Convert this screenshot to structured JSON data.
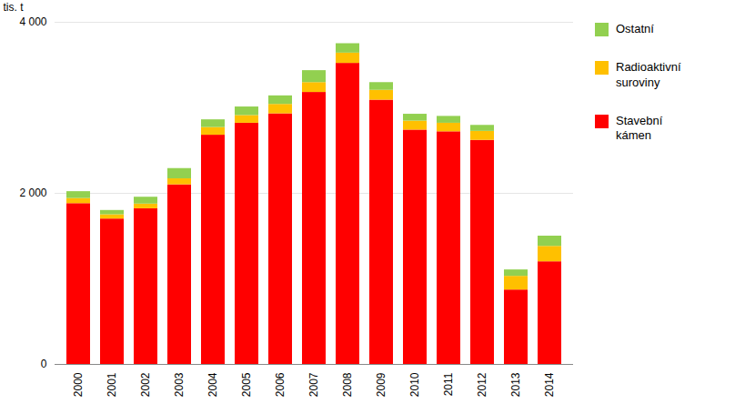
{
  "chart_data": {
    "type": "bar",
    "stacked": true,
    "categories": [
      "2000",
      "2001",
      "2002",
      "2003",
      "2004",
      "2005",
      "2006",
      "2007",
      "2008",
      "2009",
      "2010",
      "2011",
      "2012",
      "2013",
      "2014"
    ],
    "series": [
      {
        "name": "Stavební\nkámen",
        "color": "#FF0000",
        "values": [
          1880,
          1700,
          1820,
          2100,
          2680,
          2820,
          2930,
          3180,
          3520,
          3090,
          2740,
          2720,
          2620,
          870,
          1200
        ]
      },
      {
        "name": "Radioaktivní\nsuroviny",
        "color": "#FFC000",
        "values": [
          60,
          50,
          55,
          70,
          90,
          90,
          110,
          115,
          120,
          115,
          105,
          100,
          105,
          160,
          180
        ]
      },
      {
        "name": "Ostatní",
        "color": "#92D050",
        "values": [
          80,
          50,
          80,
          120,
          90,
          100,
          100,
          140,
          110,
          90,
          80,
          80,
          70,
          75,
          120
        ]
      }
    ],
    "ylabel": "tis. t",
    "ylim": [
      0,
      4000
    ],
    "yticks": [
      0,
      {
        "value": 2000,
        "label": "2 000"
      },
      {
        "value": 4000,
        "label": "4 000"
      }
    ],
    "grid": true,
    "legend": "right"
  }
}
